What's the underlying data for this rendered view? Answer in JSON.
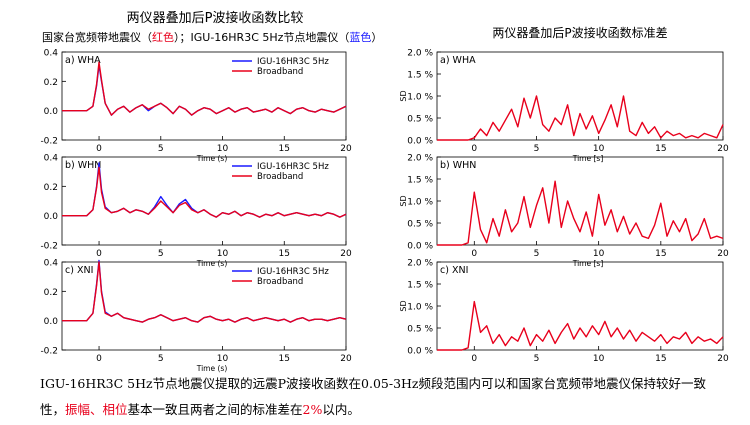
{
  "left_title": "两仪器叠加后P波接收函数比较",
  "left_subtitle": {
    "part1": "国家台宽频带地震仪（",
    "red_word": "红色",
    "part2": "）；IGU-16HR3C 5Hz节点地震仪（",
    "blue_word": "蓝色",
    "part3": "）"
  },
  "right_title": "两仪器叠加后P波接收函数标准差",
  "caption": {
    "line1": "IGU-16HR3C 5Hz节点地震仪提取的远震P波接收函数在0.05-3Hz频段范围内可以和国家台宽频带地震仪保持较好一致",
    "line2_a": "性，",
    "line2_red1": "振幅、相位",
    "line2_b": "基本一致且两者之间的标准差在",
    "line2_red2": "2%",
    "line2_c": "以内。"
  },
  "colors": {
    "broadband": "#e8001c",
    "node": "#1a1aff",
    "accent_red": "#e8001c"
  },
  "chart_data": [
    {
      "type": "line",
      "panel": "a) WHA",
      "xlabel": "Time (s)",
      "ylabel": "",
      "xlim": [
        -3,
        20
      ],
      "ylim": [
        -0.2,
        0.4
      ],
      "xticks": [
        0,
        5,
        10,
        15,
        20
      ],
      "yticks": [
        -0.2,
        0.0,
        0.2,
        0.4
      ],
      "ytick_labels": [
        "-0.2",
        "0.0",
        "0.2",
        "0.4"
      ],
      "legend": [
        "IGU-16HR3C 5Hz",
        "Broadband"
      ],
      "series": [
        {
          "name": "IGU-16HR3C 5Hz",
          "color": "#1a1aff",
          "x": [
            -3,
            -2,
            -1,
            -0.5,
            -0.2,
            0,
            0.2,
            0.5,
            1,
            1.5,
            2,
            2.5,
            3,
            3.5,
            4,
            4.5,
            5,
            5.5,
            6,
            6.5,
            7,
            7.5,
            8,
            8.5,
            9,
            9.5,
            10,
            10.5,
            11,
            11.5,
            12,
            12.5,
            13,
            13.5,
            14,
            14.5,
            15,
            15.5,
            16,
            16.5,
            17,
            17.5,
            18,
            18.5,
            19,
            19.5,
            20
          ],
          "y": [
            0,
            0,
            0,
            0.03,
            0.17,
            0.31,
            0.2,
            0.05,
            -0.03,
            0.01,
            0.03,
            -0.01,
            0.02,
            0.04,
            0,
            0.03,
            0.05,
            0.02,
            -0.02,
            0.03,
            0.01,
            -0.03,
            0,
            0.02,
            0.01,
            -0.02,
            0,
            0.02,
            -0.01,
            0.01,
            0.02,
            -0.01,
            0,
            0.01,
            -0.01,
            0.02,
            0,
            -0.02,
            0.01,
            0.02,
            0,
            -0.01,
            0.01,
            0,
            -0.01,
            0.01,
            0.03
          ]
        },
        {
          "name": "Broadband",
          "color": "#e8001c",
          "x": [
            -3,
            -2,
            -1,
            -0.5,
            -0.2,
            0,
            0.2,
            0.5,
            1,
            1.5,
            2,
            2.5,
            3,
            3.5,
            4,
            4.5,
            5,
            5.5,
            6,
            6.5,
            7,
            7.5,
            8,
            8.5,
            9,
            9.5,
            10,
            10.5,
            11,
            11.5,
            12,
            12.5,
            13,
            13.5,
            14,
            14.5,
            15,
            15.5,
            16,
            16.5,
            17,
            17.5,
            18,
            18.5,
            19,
            19.5,
            20
          ],
          "y": [
            0,
            0,
            0,
            0.03,
            0.18,
            0.33,
            0.21,
            0.05,
            -0.03,
            0.01,
            0.03,
            -0.01,
            0.02,
            0.04,
            0.01,
            0.03,
            0.05,
            0.02,
            -0.02,
            0.03,
            0.01,
            -0.03,
            0,
            0.02,
            0.01,
            -0.02,
            0,
            0.02,
            -0.01,
            0.01,
            0.02,
            -0.01,
            0,
            0.01,
            -0.01,
            0.02,
            0,
            -0.02,
            0.01,
            0.02,
            0,
            -0.01,
            0.01,
            0,
            -0.01,
            0.01,
            0.03
          ]
        }
      ]
    },
    {
      "type": "line",
      "panel": "b) WHN",
      "xlabel": "Time (s)",
      "ylabel": "",
      "xlim": [
        -3,
        20
      ],
      "ylim": [
        -0.2,
        0.4
      ],
      "xticks": [
        0,
        5,
        10,
        15,
        20
      ],
      "yticks": [
        -0.2,
        0.0,
        0.2,
        0.4
      ],
      "ytick_labels": [
        "-0.2",
        "0.0",
        "0.2",
        "0.4"
      ],
      "legend": [
        "IGU-16HR3C 5Hz",
        "Broadband"
      ],
      "series": [
        {
          "name": "IGU-16HR3C 5Hz",
          "color": "#1a1aff",
          "x": [
            -3,
            -2,
            -1,
            -0.5,
            -0.2,
            0,
            0.2,
            0.5,
            1,
            1.5,
            2,
            2.5,
            3,
            3.5,
            4,
            4.5,
            5,
            5.5,
            6,
            6.5,
            7,
            7.5,
            8,
            8.5,
            9,
            9.5,
            10,
            10.5,
            11,
            11.5,
            12,
            12.5,
            13,
            13.5,
            14,
            14.5,
            15,
            15.5,
            16,
            16.5,
            17,
            17.5,
            18,
            18.5,
            19,
            19.5,
            20
          ],
          "y": [
            0,
            0,
            0,
            0.04,
            0.2,
            0.36,
            0.18,
            0.06,
            0.02,
            0.03,
            0.05,
            0.02,
            0.04,
            0.03,
            0.01,
            0.06,
            0.13,
            0.07,
            0.02,
            0.08,
            0.11,
            0.05,
            0.02,
            0.04,
            0.01,
            -0.01,
            0.02,
            0.01,
            0.03,
            0,
            0.02,
            0.01,
            -0.01,
            0.01,
            0,
            0.02,
            0,
            0.01,
            0.02,
            0.01,
            0,
            0.01,
            0,
            0.02,
            0.01,
            -0.01,
            0.01
          ]
        },
        {
          "name": "Broadband",
          "color": "#e8001c",
          "x": [
            -3,
            -2,
            -1,
            -0.5,
            -0.2,
            0,
            0.2,
            0.5,
            1,
            1.5,
            2,
            2.5,
            3,
            3.5,
            4,
            4.5,
            5,
            5.5,
            6,
            6.5,
            7,
            7.5,
            8,
            8.5,
            9,
            9.5,
            10,
            10.5,
            11,
            11.5,
            12,
            12.5,
            13,
            13.5,
            14,
            14.5,
            15,
            15.5,
            16,
            16.5,
            17,
            17.5,
            18,
            18.5,
            19,
            19.5,
            20
          ],
          "y": [
            0,
            0,
            0,
            0.04,
            0.19,
            0.33,
            0.16,
            0.05,
            0.02,
            0.03,
            0.05,
            0.02,
            0.04,
            0.03,
            0.01,
            0.05,
            0.1,
            0.06,
            0.02,
            0.07,
            0.09,
            0.04,
            0.02,
            0.04,
            0.01,
            -0.01,
            0.02,
            0.01,
            0.03,
            0,
            0.02,
            0.01,
            -0.01,
            0.01,
            0,
            0.02,
            0,
            0.01,
            0.02,
            0.01,
            0,
            0.01,
            0,
            0.02,
            0.01,
            -0.01,
            0.01
          ]
        }
      ]
    },
    {
      "type": "line",
      "panel": "c) XNI",
      "xlabel": "Time (s)",
      "ylabel": "",
      "xlim": [
        -3,
        20
      ],
      "ylim": [
        -0.2,
        0.4
      ],
      "xticks": [
        0,
        5,
        10,
        15,
        20
      ],
      "yticks": [
        -0.2,
        0.0,
        0.2,
        0.4
      ],
      "ytick_labels": [
        "-0.2",
        "0.0",
        "0.2",
        "0.4"
      ],
      "legend": [
        "IGU-16HR3C 5Hz",
        "Broadband"
      ],
      "series": [
        {
          "name": "IGU-16HR3C 5Hz",
          "color": "#1a1aff",
          "x": [
            -3,
            -2,
            -1,
            -0.5,
            -0.2,
            0,
            0.2,
            0.5,
            1,
            1.5,
            2,
            2.5,
            3,
            3.5,
            4,
            4.5,
            5,
            5.5,
            6,
            6.5,
            7,
            7.5,
            8,
            8.5,
            9,
            9.5,
            10,
            10.5,
            11,
            11.5,
            12,
            12.5,
            13,
            13.5,
            14,
            14.5,
            15,
            15.5,
            16,
            16.5,
            17,
            17.5,
            18,
            18.5,
            19,
            19.5,
            20
          ],
          "y": [
            0,
            0,
            0,
            0.05,
            0.25,
            0.41,
            0.2,
            0.06,
            0.03,
            0.05,
            0.02,
            0.01,
            0,
            -0.01,
            0.01,
            0.02,
            0.04,
            0.02,
            0,
            0.01,
            0.02,
            0,
            -0.01,
            0.02,
            0.03,
            0.01,
            0,
            0.01,
            -0.01,
            0.01,
            0.02,
            0,
            0.01,
            0.02,
            0.01,
            0,
            0.01,
            -0.01,
            0.01,
            0.02,
            0,
            0.01,
            0.01,
            0,
            0.01,
            0.02,
            0.01
          ]
        },
        {
          "name": "Broadband",
          "color": "#e8001c",
          "x": [
            -3,
            -2,
            -1,
            -0.5,
            -0.2,
            0,
            0.2,
            0.5,
            1,
            1.5,
            2,
            2.5,
            3,
            3.5,
            4,
            4.5,
            5,
            5.5,
            6,
            6.5,
            7,
            7.5,
            8,
            8.5,
            9,
            9.5,
            10,
            10.5,
            11,
            11.5,
            12,
            12.5,
            13,
            13.5,
            14,
            14.5,
            15,
            15.5,
            16,
            16.5,
            17,
            17.5,
            18,
            18.5,
            19,
            19.5,
            20
          ],
          "y": [
            0,
            0,
            0,
            0.05,
            0.24,
            0.4,
            0.19,
            0.05,
            0.03,
            0.05,
            0.02,
            0.01,
            0,
            -0.01,
            0.01,
            0.02,
            0.04,
            0.02,
            0,
            0.01,
            0.02,
            0,
            -0.01,
            0.02,
            0.03,
            0.01,
            0,
            0.01,
            -0.01,
            0.01,
            0.02,
            0,
            0.01,
            0.02,
            0.01,
            0,
            0.01,
            -0.01,
            0.01,
            0.02,
            0,
            0.01,
            0.01,
            0,
            0.01,
            0.02,
            0.01
          ]
        }
      ]
    },
    {
      "type": "line",
      "panel": "a) WHA",
      "xlabel": "Time [s]",
      "ylabel": "SD",
      "xlim": [
        -3,
        20
      ],
      "ylim": [
        0,
        2.0
      ],
      "xticks": [
        0,
        5,
        10,
        15,
        20
      ],
      "yticks": [
        0,
        0.5,
        1.0,
        1.5,
        2.0
      ],
      "ytick_labels": [
        "0.0 %",
        "0.5 %",
        "1.0 %",
        "1.5 %",
        "2.0 %"
      ],
      "series": [
        {
          "name": "SD",
          "color": "#e8001c",
          "x": [
            -3,
            -2,
            -1,
            -0.5,
            0,
            0.5,
            1,
            1.5,
            2,
            2.5,
            3,
            3.5,
            4,
            4.5,
            5,
            5.5,
            6,
            6.5,
            7,
            7.5,
            8,
            8.5,
            9,
            9.5,
            10,
            10.5,
            11,
            11.5,
            12,
            12.5,
            13,
            13.5,
            14,
            14.5,
            15,
            15.5,
            16,
            16.5,
            17,
            17.5,
            18,
            18.5,
            19,
            19.5,
            20
          ],
          "y": [
            0,
            0,
            0,
            0,
            0.05,
            0.25,
            0.1,
            0.4,
            0.2,
            0.45,
            0.7,
            0.3,
            0.95,
            0.5,
            1.0,
            0.35,
            0.2,
            0.5,
            0.35,
            0.8,
            0.1,
            0.6,
            0.25,
            0.55,
            0.15,
            0.45,
            0.8,
            0.3,
            1.0,
            0.2,
            0.1,
            0.4,
            0.15,
            0.3,
            0.05,
            0.2,
            0.1,
            0.15,
            0.05,
            0.1,
            0.05,
            0.15,
            0.1,
            0.05,
            0.35
          ]
        }
      ]
    },
    {
      "type": "line",
      "panel": "b) WHN",
      "xlabel": "Time [s]",
      "ylabel": "SD",
      "xlim": [
        -3,
        20
      ],
      "ylim": [
        0,
        2.0
      ],
      "xticks": [
        0,
        5,
        10,
        15,
        20
      ],
      "yticks": [
        0,
        0.5,
        1.0,
        1.5,
        2.0
      ],
      "ytick_labels": [
        "0.0 %",
        "0.5 %",
        "1.0 %",
        "1.5 %",
        "2.0 %"
      ],
      "series": [
        {
          "name": "SD",
          "color": "#e8001c",
          "x": [
            -3,
            -2,
            -1,
            -0.5,
            0,
            0.5,
            1,
            1.5,
            2,
            2.5,
            3,
            3.5,
            4,
            4.5,
            5,
            5.5,
            6,
            6.5,
            7,
            7.5,
            8,
            8.5,
            9,
            9.5,
            10,
            10.5,
            11,
            11.5,
            12,
            12.5,
            13,
            13.5,
            14,
            14.5,
            15,
            15.5,
            16,
            16.5,
            17,
            17.5,
            18,
            18.5,
            19,
            19.5,
            20
          ],
          "y": [
            0,
            0,
            0,
            0.05,
            1.2,
            0.35,
            0.05,
            0.6,
            0.2,
            0.8,
            0.3,
            0.5,
            1.1,
            0.4,
            0.9,
            1.3,
            0.5,
            1.45,
            0.4,
            1.0,
            0.6,
            0.3,
            0.75,
            0.2,
            1.15,
            0.45,
            0.8,
            0.3,
            0.65,
            0.25,
            0.5,
            0.2,
            0.15,
            0.45,
            0.95,
            0.2,
            0.55,
            0.3,
            0.6,
            0.1,
            0.25,
            0.6,
            0.15,
            0.2,
            0.15
          ]
        }
      ]
    },
    {
      "type": "line",
      "panel": "c) XNI",
      "xlabel": "",
      "ylabel": "SD",
      "xlim": [
        -3,
        20
      ],
      "ylim": [
        0,
        2.0
      ],
      "xticks": [
        0,
        5,
        10,
        15,
        20
      ],
      "yticks": [
        0,
        0.5,
        1.0,
        1.5,
        2.0
      ],
      "ytick_labels": [
        "0.0 %",
        "0.5 %",
        "1.0 %",
        "1.5 %",
        "2.0 %"
      ],
      "series": [
        {
          "name": "SD",
          "color": "#e8001c",
          "x": [
            -3,
            -2,
            -1,
            -0.5,
            0,
            0.5,
            1,
            1.5,
            2,
            2.5,
            3,
            3.5,
            4,
            4.5,
            5,
            5.5,
            6,
            6.5,
            7,
            7.5,
            8,
            8.5,
            9,
            9.5,
            10,
            10.5,
            11,
            11.5,
            12,
            12.5,
            13,
            13.5,
            14,
            14.5,
            15,
            15.5,
            16,
            16.5,
            17,
            17.5,
            18,
            18.5,
            19,
            19.5,
            20
          ],
          "y": [
            0,
            0,
            0,
            0.05,
            1.1,
            0.4,
            0.55,
            0.15,
            0.35,
            0.1,
            0.3,
            0.2,
            0.5,
            0.1,
            0.35,
            0.2,
            0.45,
            0.15,
            0.4,
            0.6,
            0.25,
            0.5,
            0.3,
            0.55,
            0.35,
            0.65,
            0.3,
            0.5,
            0.25,
            0.45,
            0.2,
            0.4,
            0.3,
            0.2,
            0.35,
            0.15,
            0.3,
            0.25,
            0.4,
            0.15,
            0.3,
            0.2,
            0.25,
            0.15,
            0.3
          ]
        }
      ]
    }
  ]
}
